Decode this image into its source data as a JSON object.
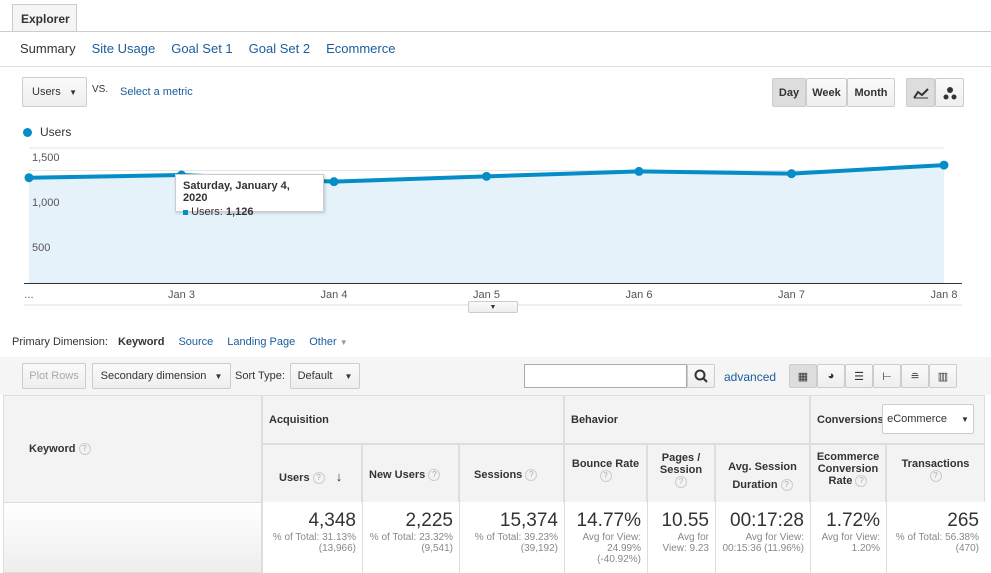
{
  "tab": "Explorer",
  "subnav": [
    "Summary",
    "Site Usage",
    "Goal Set 1",
    "Goal Set 2",
    "Ecommerce"
  ],
  "metric": {
    "selected": "Users",
    "vs": "VS.",
    "select": "Select a metric"
  },
  "period": [
    "Day",
    "Week",
    "Month"
  ],
  "period_active": "Day",
  "legend": "Users",
  "tooltip": {
    "title": "Saturday, January 4, 2020",
    "label": "Users:",
    "value": "1,126"
  },
  "colors": {
    "series": "#058dc7",
    "fill": "#e6f2fa",
    "link": "#1a5c9e"
  },
  "chart_data": {
    "type": "area",
    "categories": [
      "...",
      "Jan 3",
      "Jan 4",
      "Jan 5",
      "Jan 6",
      "Jan 7",
      "Jan 8"
    ],
    "series": [
      {
        "name": "Users",
        "values": [
          1170,
          1200,
          1126,
          1185,
          1240,
          1215,
          1310
        ]
      }
    ],
    "yticks": [
      "500",
      "1,000",
      "1,500"
    ],
    "ylim": [
      0,
      1500
    ],
    "grid": true,
    "legend": "top-left"
  },
  "dimension": {
    "label": "Primary Dimension:",
    "items": [
      "Keyword",
      "Source",
      "Landing Page",
      "Other"
    ]
  },
  "toolbar": {
    "plot_rows": "Plot Rows",
    "secondary": "Secondary dimension",
    "sort_label": "Sort Type:",
    "sort": "Default",
    "search_placeholder": "",
    "advanced": "advanced"
  },
  "table": {
    "keyword": "Keyword",
    "groups": {
      "acq": "Acquisition",
      "beh": "Behavior",
      "conv": "Conversions",
      "conv_select": "eCommerce"
    },
    "cols": [
      "Users",
      "New Users",
      "Sessions",
      "Bounce Rate",
      "Pages / Session",
      "Avg. Session Duration",
      "Ecommerce Conversion Rate",
      "Transactions"
    ],
    "totals": [
      {
        "v": "4,348",
        "s": "% of Total: 31.13% (13,966)"
      },
      {
        "v": "2,225",
        "s": "% of Total: 23.32% (9,541)"
      },
      {
        "v": "15,374",
        "s": "% of Total: 39.23% (39,192)"
      },
      {
        "v": "14.77%",
        "s": "Avg for View: 24.99% (-40.92%)"
      },
      {
        "v": "10.55",
        "s": "Avg for View: 9.23"
      },
      {
        "v": "00:17:28",
        "s": "Avg for View: 00:15:36 (11.96%)"
      },
      {
        "v": "1.72%",
        "s": "Avg for View: 1.20%"
      },
      {
        "v": "265",
        "s": "% of Total: 56.38% (470)"
      }
    ]
  }
}
